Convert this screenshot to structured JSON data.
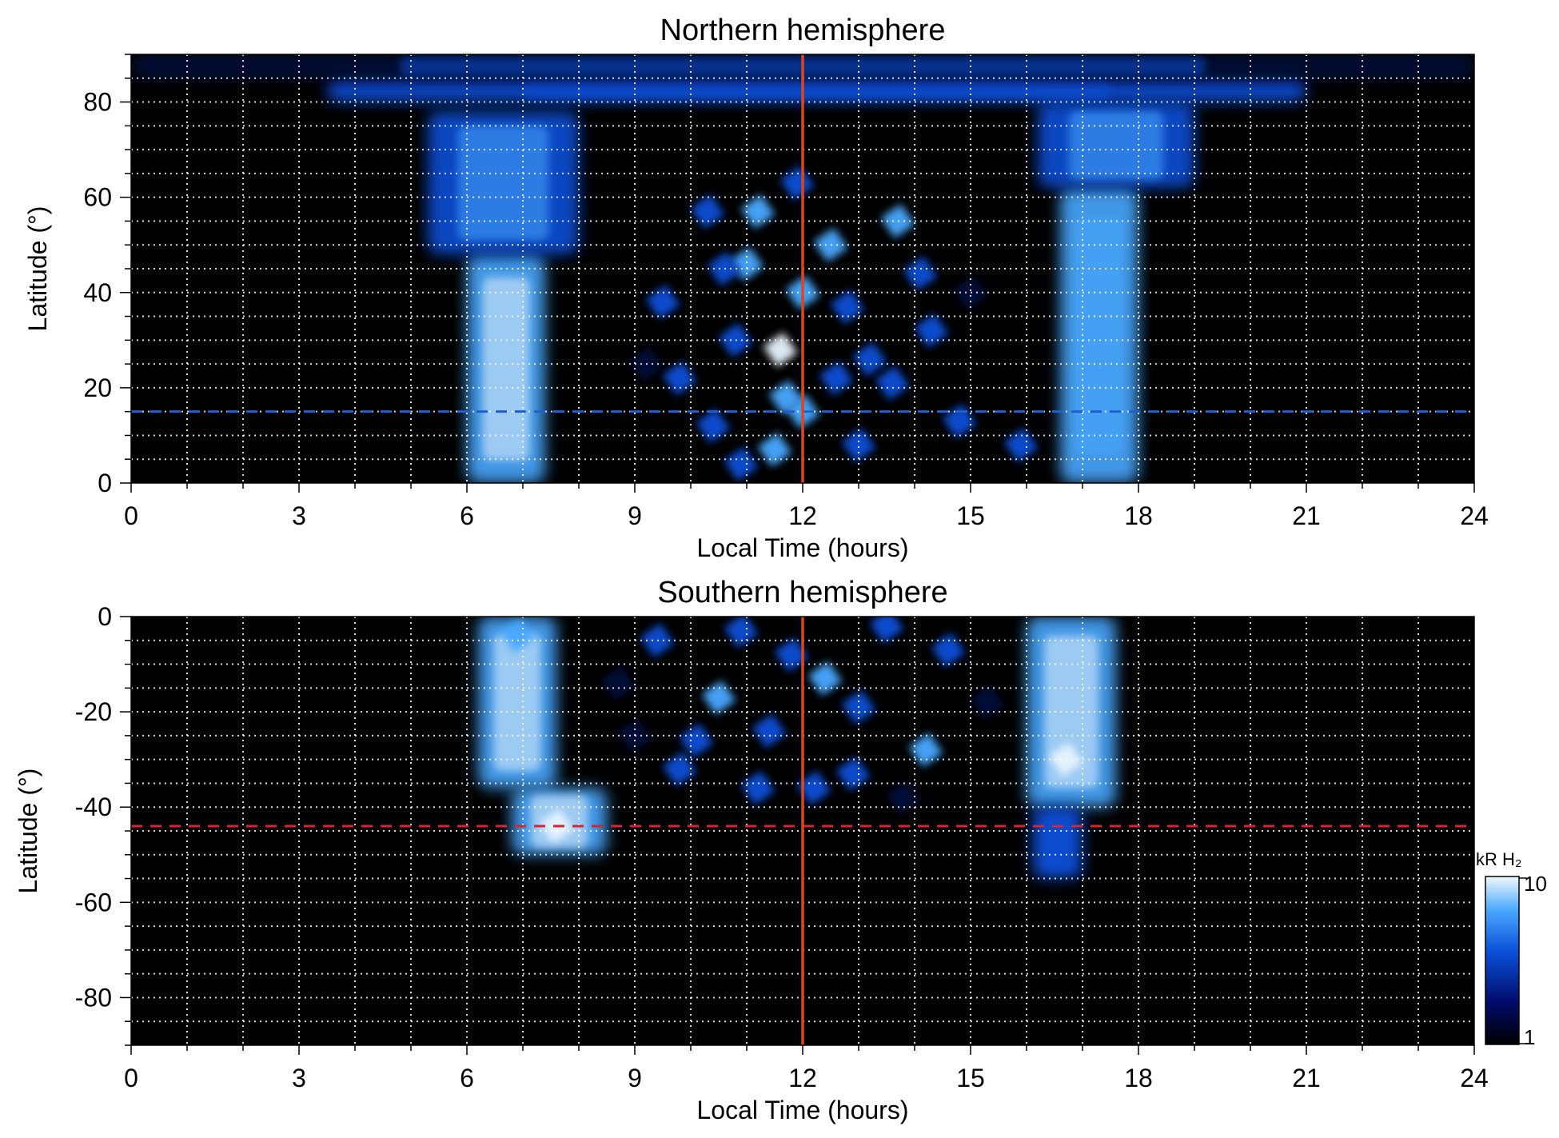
{
  "colors": {
    "background": "#000000",
    "emission_dark": "#000b3a",
    "emission_mid": "#0a4fd8",
    "emission_bright": "#4aa8ff",
    "emission_peak": "#e8f4ff",
    "noon_line": "#e0441a",
    "north_reference_line": "#1f5fd0",
    "south_reference_line": "#e0202a",
    "grid": "#ffffff"
  },
  "colorbar": {
    "label": "kR H₂",
    "max_label": "10",
    "min_label": "1",
    "scale": "log",
    "range": [
      1,
      10
    ]
  },
  "chart_data": [
    {
      "type": "heatmap",
      "title": "Northern hemisphere",
      "xlabel": "Local Time (hours)",
      "ylabel": "Latitude (°)",
      "xlim": [
        0,
        24
      ],
      "ylim": [
        0,
        90
      ],
      "xticks": [
        0,
        3,
        6,
        9,
        12,
        15,
        18,
        21,
        24
      ],
      "xtick_labels": [
        "0",
        "3",
        "6",
        "9",
        "12",
        "15",
        "18",
        "21",
        "24"
      ],
      "yticks": [
        0,
        20,
        40,
        60,
        80
      ],
      "ytick_labels": [
        "0",
        "20",
        "40",
        "60",
        "80"
      ],
      "grid": true,
      "vertical_line": 12,
      "reference_latitude": 15,
      "reference_line_style": "dashed",
      "bands": [
        {
          "lt_range": [
            6.0,
            7.4
          ],
          "lat_range": [
            0,
            48
          ],
          "intensity": 6
        },
        {
          "lt_range": [
            5.3,
            8.0
          ],
          "lat_range": [
            48,
            78
          ],
          "intensity": 4
        },
        {
          "lt_range": [
            16.6,
            18.0
          ],
          "lat_range": [
            0,
            62
          ],
          "intensity": 5
        },
        {
          "lt_range": [
            16.2,
            19.0
          ],
          "lat_range": [
            62,
            80
          ],
          "intensity": 4
        },
        {
          "lt_range": [
            3.5,
            21.0
          ],
          "lat_range": [
            80,
            85
          ],
          "intensity": 3
        },
        {
          "lt_range": [
            0,
            24
          ],
          "lat_range": [
            85,
            90
          ],
          "intensity": 2
        }
      ],
      "spots": [
        {
          "lt": 11.6,
          "lat": 28,
          "intensity": 8
        },
        {
          "lt": 11.7,
          "lat": 18,
          "intensity": 7
        },
        {
          "lt": 11.5,
          "lat": 7,
          "intensity": 7
        },
        {
          "lt": 12.0,
          "lat": 15,
          "intensity": 6
        },
        {
          "lt": 11.0,
          "lat": 46,
          "intensity": 5
        },
        {
          "lt": 11.2,
          "lat": 57,
          "intensity": 5
        },
        {
          "lt": 12.5,
          "lat": 50,
          "intensity": 5
        },
        {
          "lt": 13.7,
          "lat": 55,
          "intensity": 5
        },
        {
          "lt": 10.3,
          "lat": 57,
          "intensity": 4
        },
        {
          "lt": 12.0,
          "lat": 40,
          "intensity": 5
        },
        {
          "lt": 10.8,
          "lat": 30,
          "intensity": 4
        },
        {
          "lt": 13.2,
          "lat": 26,
          "intensity": 4
        },
        {
          "lt": 13.6,
          "lat": 21,
          "intensity": 4
        },
        {
          "lt": 10.4,
          "lat": 12,
          "intensity": 4
        },
        {
          "lt": 12.6,
          "lat": 22,
          "intensity": 4
        },
        {
          "lt": 14.3,
          "lat": 32,
          "intensity": 3
        },
        {
          "lt": 9.5,
          "lat": 38,
          "intensity": 3
        },
        {
          "lt": 13.0,
          "lat": 8,
          "intensity": 3
        },
        {
          "lt": 14.8,
          "lat": 13,
          "intensity": 3
        },
        {
          "lt": 9.8,
          "lat": 22,
          "intensity": 3
        },
        {
          "lt": 12.8,
          "lat": 37,
          "intensity": 3
        },
        {
          "lt": 15.9,
          "lat": 8,
          "intensity": 3
        },
        {
          "lt": 10.6,
          "lat": 45,
          "intensity": 3
        },
        {
          "lt": 14.1,
          "lat": 44,
          "intensity": 3
        },
        {
          "lt": 11.9,
          "lat": 63,
          "intensity": 3
        },
        {
          "lt": 9.2,
          "lat": 25,
          "intensity": 2
        },
        {
          "lt": 15.0,
          "lat": 40,
          "intensity": 2
        },
        {
          "lt": 10.9,
          "lat": 4,
          "intensity": 3
        }
      ]
    },
    {
      "type": "heatmap",
      "title": "Southern hemisphere",
      "xlabel": "Local Time (hours)",
      "ylabel": "Latitude (°)",
      "xlim": [
        0,
        24
      ],
      "ylim": [
        -90,
        0
      ],
      "xticks": [
        0,
        3,
        6,
        9,
        12,
        15,
        18,
        21,
        24
      ],
      "xtick_labels": [
        "0",
        "3",
        "6",
        "9",
        "12",
        "15",
        "18",
        "21",
        "24"
      ],
      "yticks": [
        0,
        -20,
        -40,
        -60,
        -80
      ],
      "ytick_labels": [
        "0",
        "-20",
        "-40",
        "-60",
        "-80"
      ],
      "grid": true,
      "vertical_line": 12,
      "reference_latitude": -44,
      "reference_line_style": "dashed",
      "bands": [
        {
          "lt_range": [
            6.2,
            7.6
          ],
          "lat_range": [
            -36,
            0
          ],
          "intensity": 6
        },
        {
          "lt_range": [
            6.8,
            8.5
          ],
          "lat_range": [
            -50,
            -36
          ],
          "intensity": 7
        },
        {
          "lt_range": [
            16.0,
            17.6
          ],
          "lat_range": [
            -40,
            0
          ],
          "intensity": 6
        },
        {
          "lt_range": [
            16.1,
            17.0
          ],
          "lat_range": [
            -55,
            -40
          ],
          "intensity": 3
        }
      ],
      "spots": [
        {
          "lt": 16.7,
          "lat": -30,
          "intensity": 9
        },
        {
          "lt": 7.6,
          "lat": -44,
          "intensity": 8
        },
        {
          "lt": 6.9,
          "lat": -4,
          "intensity": 7
        },
        {
          "lt": 10.5,
          "lat": -17,
          "intensity": 5
        },
        {
          "lt": 12.4,
          "lat": -13,
          "intensity": 5
        },
        {
          "lt": 14.2,
          "lat": -28,
          "intensity": 5
        },
        {
          "lt": 9.4,
          "lat": -5,
          "intensity": 4
        },
        {
          "lt": 11.4,
          "lat": -24,
          "intensity": 4
        },
        {
          "lt": 12.9,
          "lat": -33,
          "intensity": 4
        },
        {
          "lt": 10.1,
          "lat": -26,
          "intensity": 4
        },
        {
          "lt": 13.5,
          "lat": -2,
          "intensity": 4
        },
        {
          "lt": 11.8,
          "lat": -8,
          "intensity": 3
        },
        {
          "lt": 13.0,
          "lat": -19,
          "intensity": 3
        },
        {
          "lt": 9.8,
          "lat": -32,
          "intensity": 3
        },
        {
          "lt": 11.2,
          "lat": -36,
          "intensity": 3
        },
        {
          "lt": 12.2,
          "lat": -36,
          "intensity": 3
        },
        {
          "lt": 14.6,
          "lat": -7,
          "intensity": 3
        },
        {
          "lt": 10.9,
          "lat": -3,
          "intensity": 3
        },
        {
          "lt": 8.7,
          "lat": -14,
          "intensity": 2
        },
        {
          "lt": 15.3,
          "lat": -18,
          "intensity": 2
        },
        {
          "lt": 13.8,
          "lat": -38,
          "intensity": 2
        },
        {
          "lt": 9.0,
          "lat": -25,
          "intensity": 2
        }
      ]
    }
  ]
}
